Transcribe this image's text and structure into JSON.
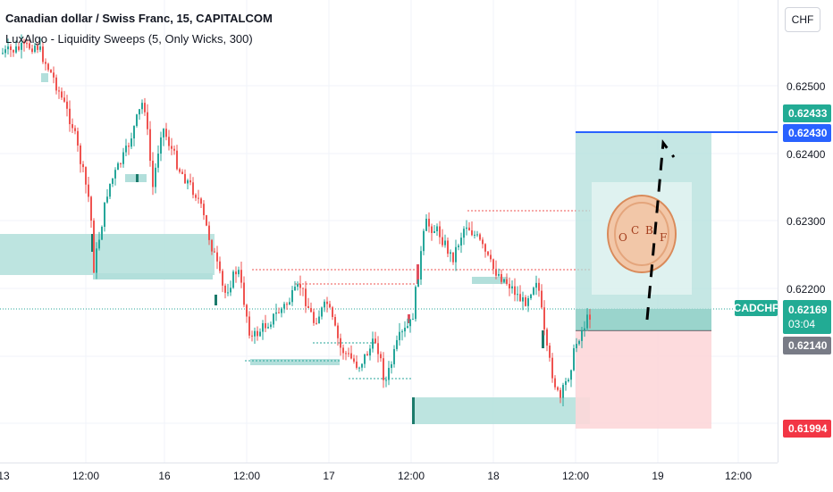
{
  "legend": {
    "title": "Canadian dollar / Swiss Franc, 15, CAPITALCOM",
    "indicator": "LuxAlgo - Liquidity Sweeps (5, Only Wicks, 300)"
  },
  "price_axis": {
    "currency": "CHF",
    "ticks": [
      "0.62500",
      "0.62400",
      "0.62300",
      "0.62200"
    ],
    "labels": {
      "target_high": "0.62433",
      "target_line": "0.62430",
      "symbol": "CADCHF",
      "last_price": "0.62169",
      "countdown": "03:04",
      "entry": "0.62140",
      "stop": "0.61994"
    }
  },
  "time_axis": {
    "ticks": [
      "13",
      "12:00",
      "16",
      "12:00",
      "17",
      "12:00",
      "18",
      "12:00",
      "19",
      "12:00"
    ]
  },
  "watermark": {
    "letters": [
      "O",
      "C",
      "B",
      "F"
    ]
  },
  "colors": {
    "up": "#26a69a",
    "down": "#ef5350",
    "zone_green": "#b2dfdb",
    "zone_red": "#fdd7d9",
    "target_blue": "#2962ff",
    "target_green": "#22ab94",
    "entry_gray": "#787b86",
    "stop_red": "#f23645"
  }
}
